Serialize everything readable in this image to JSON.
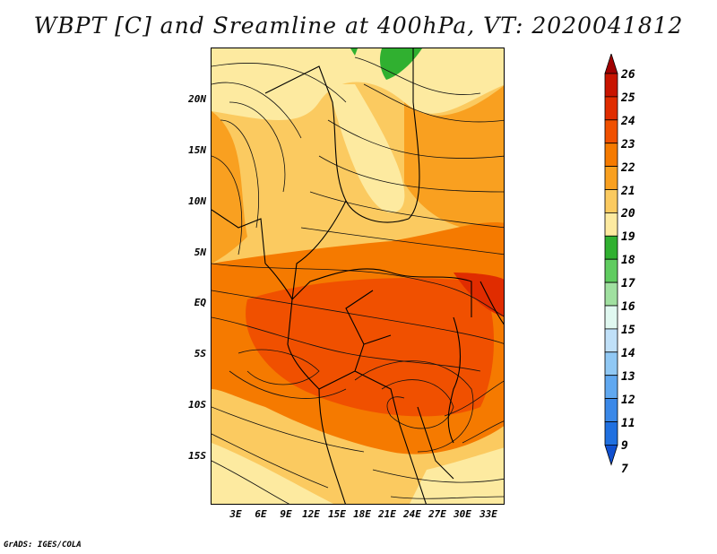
{
  "title": "WBPT [C] and Sreamline at 400hPa, VT: 2020041812",
  "footer": "GrADS: IGES/COLA",
  "map": {
    "lat_labels": [
      "20N",
      "15N",
      "10N",
      "5N",
      "EQ",
      "5S",
      "10S",
      "15S"
    ],
    "lon_labels": [
      "3E",
      "6E",
      "9E",
      "12E",
      "15E",
      "18E",
      "21E",
      "24E",
      "27E",
      "30E",
      "33E"
    ],
    "lat_range": [
      -20,
      25
    ],
    "lon_range": [
      0,
      35
    ]
  },
  "colorbar": {
    "labels": [
      "26",
      "25",
      "24",
      "23",
      "22",
      "21",
      "20",
      "19",
      "18",
      "17",
      "16",
      "15",
      "14",
      "13",
      "12",
      "11",
      "9",
      "7"
    ],
    "colors": [
      "#a00000",
      "#c81400",
      "#e02c00",
      "#f05000",
      "#f57a00",
      "#f9a020",
      "#fbca60",
      "#fdeaa0",
      "#30b030",
      "#60cc60",
      "#a0e0a0",
      "#e0f8f0",
      "#c0e0f8",
      "#90c8f4",
      "#60a8f0",
      "#3a88e8",
      "#2070e0",
      "#1050d0"
    ]
  }
}
